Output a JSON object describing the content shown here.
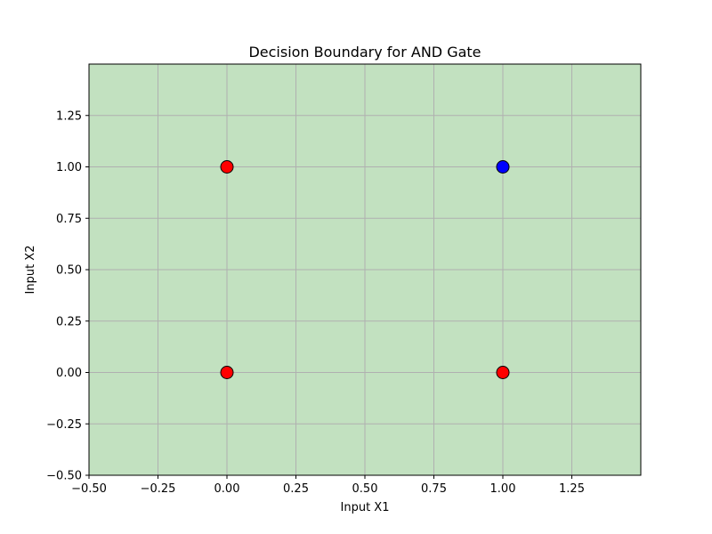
{
  "chart_data": {
    "type": "scatter",
    "title": "Decision Boundary for AND Gate",
    "xlabel": "Input X1",
    "ylabel": "Input X2",
    "xlim": [
      -0.5,
      1.5
    ],
    "ylim": [
      -0.5,
      1.5
    ],
    "xticks": [
      -0.5,
      -0.25,
      0.0,
      0.25,
      0.5,
      0.75,
      1.0,
      1.25
    ],
    "yticks": [
      -0.5,
      -0.25,
      0.0,
      0.25,
      0.5,
      0.75,
      1.0,
      1.25
    ],
    "xtick_labels": [
      "−0.50",
      "−0.25",
      "0.00",
      "0.25",
      "0.50",
      "0.75",
      "1.00",
      "1.25"
    ],
    "ytick_labels": [
      "−0.50",
      "−0.25",
      "0.00",
      "0.25",
      "0.50",
      "0.75",
      "1.00",
      "1.25"
    ],
    "grid": true,
    "region_color": "#c2e1c0",
    "grid_color": "#b0b0b0",
    "points": [
      {
        "x": 0,
        "y": 0,
        "class": 0,
        "color": "#ff0000"
      },
      {
        "x": 0,
        "y": 1,
        "class": 0,
        "color": "#ff0000"
      },
      {
        "x": 1,
        "y": 0,
        "class": 0,
        "color": "#ff0000"
      },
      {
        "x": 1,
        "y": 1,
        "class": 1,
        "color": "#0000ff"
      }
    ]
  }
}
